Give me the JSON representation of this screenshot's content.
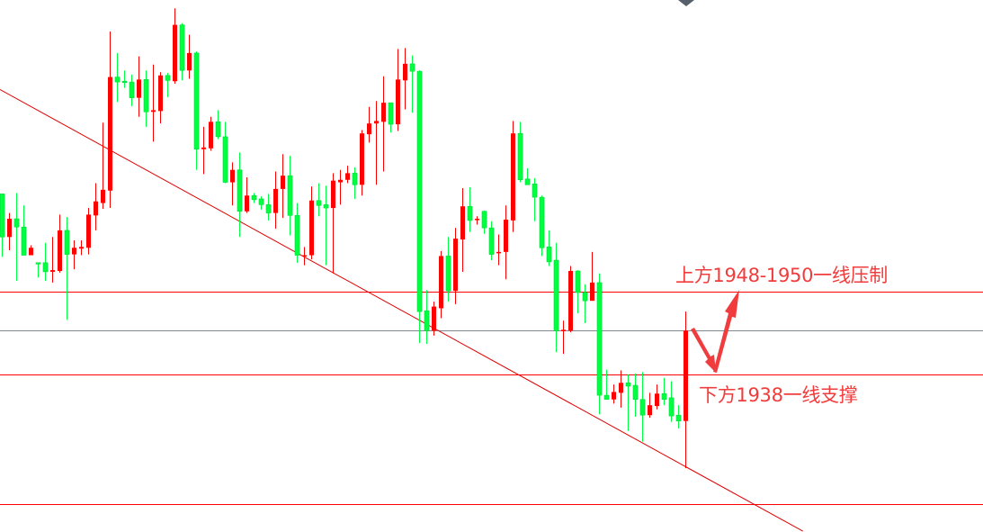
{
  "chart_data": {
    "type": "candlestick",
    "title": "",
    "xlabel": "",
    "ylabel": "",
    "grid": false,
    "ylim": [
      1919.0,
      1983.2
    ],
    "color_convention": {
      "up": "#ff0000",
      "down": "#00ff40"
    },
    "candles_ohlc": [
      [
        1959.8,
        1959.8,
        1952.2,
        1954.6
      ],
      [
        1954.6,
        1957.5,
        1953.0,
        1956.8
      ],
      [
        1956.8,
        1959.9,
        1949.3,
        1955.8
      ],
      [
        1955.8,
        1958.4,
        1952.4,
        1952.4
      ],
      [
        1952.4,
        1953.6,
        1952.4,
        1953.3
      ],
      [
        1951.5,
        1951.5,
        1949.7,
        1951.4
      ],
      [
        1951.5,
        1953.9,
        1949.3,
        1950.4
      ],
      [
        1950.4,
        1954.6,
        1949.1,
        1950.6
      ],
      [
        1950.5,
        1957.3,
        1950.3,
        1955.4
      ],
      [
        1955.4,
        1957.0,
        1944.6,
        1952.5
      ],
      [
        1952.5,
        1954.2,
        1950.7,
        1953.3
      ],
      [
        1953.2,
        1954.2,
        1952.4,
        1953.4
      ],
      [
        1953.3,
        1958.1,
        1952.5,
        1957.3
      ],
      [
        1957.2,
        1961.1,
        1955.4,
        1958.9
      ],
      [
        1958.7,
        1968.4,
        1958.0,
        1960.3
      ],
      [
        1960.2,
        1979.4,
        1958.1,
        1973.9
      ],
      [
        1973.9,
        1976.8,
        1970.9,
        1973.3
      ],
      [
        1973.4,
        1974.7,
        1972.6,
        1973.3
      ],
      [
        1973.3,
        1974.2,
        1970.4,
        1971.4
      ],
      [
        1971.4,
        1976.4,
        1969.1,
        1973.6
      ],
      [
        1973.6,
        1974.7,
        1967.9,
        1969.7
      ],
      [
        1969.7,
        1975.4,
        1966.1,
        1969.9
      ],
      [
        1969.8,
        1974.5,
        1968.3,
        1974.1
      ],
      [
        1974.1,
        1974.4,
        1971.5,
        1973.5
      ],
      [
        1973.4,
        1982.2,
        1973.1,
        1980.2
      ],
      [
        1980.2,
        1980.4,
        1973.5,
        1974.7
      ],
      [
        1974.7,
        1979.0,
        1973.7,
        1976.8
      ],
      [
        1976.8,
        1977.0,
        1962.7,
        1965.2
      ],
      [
        1965.2,
        1967.9,
        1962.2,
        1965.4
      ],
      [
        1965.3,
        1969.1,
        1965.0,
        1968.5
      ],
      [
        1968.5,
        1969.9,
        1966.4,
        1966.7
      ],
      [
        1966.7,
        1968.5,
        1961.1,
        1961.2
      ],
      [
        1961.2,
        1963.6,
        1958.4,
        1962.7
      ],
      [
        1962.7,
        1964.8,
        1954.6,
        1957.7
      ],
      [
        1957.7,
        1961.8,
        1957.5,
        1959.6
      ],
      [
        1959.6,
        1959.9,
        1958.7,
        1959.1
      ],
      [
        1959.2,
        1959.5,
        1957.9,
        1958.5
      ],
      [
        1958.5,
        1959.8,
        1956.6,
        1957.5
      ],
      [
        1957.5,
        1962.5,
        1955.6,
        1960.4
      ],
      [
        1960.4,
        1964.6,
        1956.9,
        1962.0
      ],
      [
        1962.0,
        1964.4,
        1954.8,
        1957.2
      ],
      [
        1957.2,
        1958.7,
        1951.5,
        1952.4
      ],
      [
        1952.3,
        1953.4,
        1951.2,
        1952.4
      ],
      [
        1952.4,
        1960.7,
        1951.9,
        1959.0
      ],
      [
        1959.0,
        1961.1,
        1957.1,
        1958.4
      ],
      [
        1958.5,
        1960.8,
        1951.2,
        1958.1
      ],
      [
        1958.1,
        1962.3,
        1950.2,
        1961.4
      ],
      [
        1961.2,
        1962.7,
        1958.5,
        1961.5
      ],
      [
        1961.5,
        1963.2,
        1961.1,
        1962.3
      ],
      [
        1962.3,
        1963.0,
        1959.2,
        1960.9
      ],
      [
        1960.9,
        1967.5,
        1959.6,
        1967.1
      ],
      [
        1967.0,
        1970.3,
        1966.0,
        1968.3
      ],
      [
        1968.3,
        1971.0,
        1960.9,
        1968.6
      ],
      [
        1968.5,
        1974.0,
        1962.5,
        1970.8
      ],
      [
        1970.8,
        1970.8,
        1967.2,
        1968.2
      ],
      [
        1968.2,
        1977.3,
        1967.4,
        1973.6
      ],
      [
        1973.5,
        1977.4,
        1970.0,
        1975.5
      ],
      [
        1975.5,
        1976.5,
        1969.6,
        1974.6
      ],
      [
        1974.6,
        1974.7,
        1941.8,
        1945.6
      ],
      [
        1945.7,
        1948.2,
        1941.7,
        1943.3
      ],
      [
        1943.3,
        1946.8,
        1942.7,
        1946.2
      ],
      [
        1946.0,
        1952.9,
        1944.8,
        1952.3
      ],
      [
        1952.3,
        1954.6,
        1946.8,
        1948.1
      ],
      [
        1948.1,
        1955.7,
        1946.5,
        1954.4
      ],
      [
        1954.3,
        1960.5,
        1950.4,
        1958.3
      ],
      [
        1958.3,
        1960.6,
        1955.2,
        1956.6
      ],
      [
        1956.7,
        1957.1,
        1956.1,
        1956.8
      ],
      [
        1957.7,
        1957.8,
        1955.0,
        1955.7
      ],
      [
        1955.7,
        1956.5,
        1951.8,
        1952.5
      ],
      [
        1952.7,
        1954.9,
        1951.2,
        1952.8
      ],
      [
        1952.8,
        1958.4,
        1949.5,
        1956.7
      ],
      [
        1956.6,
        1968.6,
        1955.2,
        1967.1
      ],
      [
        1967.1,
        1968.5,
        1961.2,
        1961.5
      ],
      [
        1961.6,
        1962.9,
        1960.9,
        1960.9
      ],
      [
        1961.0,
        1961.7,
        1956.5,
        1959.4
      ],
      [
        1959.4,
        1959.6,
        1952.3,
        1953.3
      ],
      [
        1953.4,
        1955.4,
        1951.1,
        1951.6
      ],
      [
        1951.8,
        1953.9,
        1940.7,
        1943.3
      ],
      [
        1943.3,
        1944.5,
        1940.5,
        1943.4
      ],
      [
        1943.3,
        1951.1,
        1943.1,
        1950.5
      ],
      [
        1950.5,
        1950.6,
        1945.4,
        1947.9
      ],
      [
        1947.9,
        1948.9,
        1944.2,
        1946.9
      ],
      [
        1946.9,
        1952.8,
        1946.9,
        1949.1
      ],
      [
        1949.1,
        1950.2,
        1933.2,
        1935.5
      ],
      [
        1935.5,
        1938.6,
        1935.0,
        1935.0
      ],
      [
        1935.0,
        1936.8,
        1934.5,
        1935.9
      ],
      [
        1935.8,
        1938.5,
        1934.0,
        1937.0
      ],
      [
        1937.0,
        1938.0,
        1931.2,
        1936.6
      ],
      [
        1936.7,
        1938.1,
        1932.9,
        1935.0
      ],
      [
        1935.0,
        1938.3,
        1929.9,
        1933.1
      ],
      [
        1933.1,
        1935.8,
        1932.8,
        1934.3
      ],
      [
        1934.2,
        1936.8,
        1933.8,
        1935.7
      ],
      [
        1935.7,
        1937.6,
        1934.3,
        1935.0
      ],
      [
        1935.2,
        1937.2,
        1932.3,
        1933.0
      ],
      [
        1933.1,
        1934.3,
        1931.5,
        1932.4
      ],
      [
        1932.4,
        1945.6,
        1926.7,
        1943.3
      ]
    ],
    "horizontal_lines": [
      {
        "price": 1948.0,
        "color": "#ff0000"
      },
      {
        "price": 1943.3,
        "color": "#808890"
      },
      {
        "price": 1938.0,
        "color": "#ff0000"
      },
      {
        "price": 1922.4,
        "color": "#ff0000"
      }
    ],
    "trendline": {
      "color": "#e00000",
      "points": [
        [
          -0.3,
          1972.4
        ],
        [
          111.3,
          1919.1
        ]
      ]
    },
    "annotations": {
      "resistance": "上方1948-1950一线压制",
      "support": "下方1938一线支撑",
      "color": "#f03c3c"
    }
  }
}
